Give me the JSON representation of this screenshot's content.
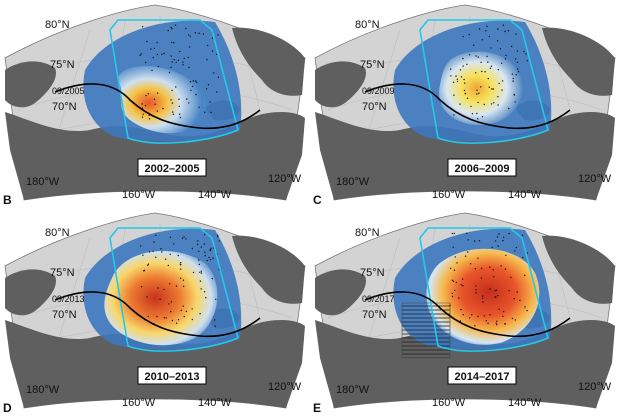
{
  "panels": [
    {
      "letter": "B",
      "period": "2002–2005",
      "ice_edge_label": "09/2005",
      "lat_labels": [
        "80°N",
        "75°N",
        "70°N"
      ],
      "lon_labels": [
        "180°W",
        "160°W",
        "140°W",
        "120°W"
      ],
      "hatched_region": false
    },
    {
      "letter": "C",
      "period": "2006–2009",
      "ice_edge_label": "09/2009",
      "lat_labels": [
        "80°N",
        "75°N",
        "70°N"
      ],
      "lon_labels": [
        "180°W",
        "160°W",
        "140°W",
        "120°W"
      ],
      "hatched_region": false
    },
    {
      "letter": "D",
      "period": "2010–2013",
      "ice_edge_label": "09/2013",
      "lat_labels": [
        "80°N",
        "75°N",
        "70°N"
      ],
      "lon_labels": [
        "180°W",
        "160°W",
        "140°W",
        "120°W"
      ],
      "hatched_region": false
    },
    {
      "letter": "E",
      "period": "2014–2017",
      "ice_edge_label": "09/2017",
      "lat_labels": [
        "80°N",
        "75°N",
        "70°N"
      ],
      "lon_labels": [
        "180°W",
        "160°W",
        "140°W",
        "120°W"
      ],
      "hatched_region": true
    }
  ],
  "colors": {
    "land": "#5f5f5f",
    "ocean": "#d3d3d3",
    "box_outline": "#25c8e8",
    "ice_edge": "#000000",
    "scale_low": "#2f6db5",
    "scale_high": "#d7301f"
  }
}
